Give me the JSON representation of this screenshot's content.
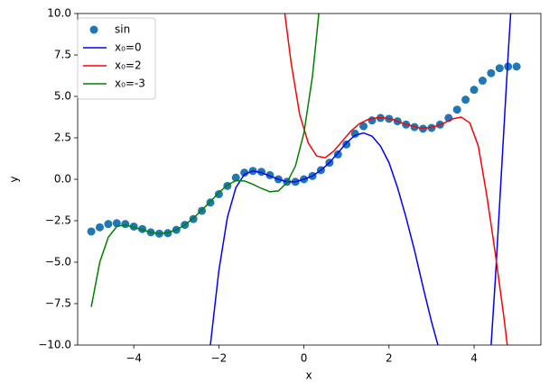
{
  "chart_data": {
    "type": "scatter",
    "xlabel": "x",
    "ylabel": "y",
    "xlim": [
      -5.32,
      5.57
    ],
    "ylim": [
      -10,
      10
    ],
    "xticks": [
      {
        "value": -4,
        "label": "−4"
      },
      {
        "value": -2,
        "label": "−2"
      },
      0,
      2,
      4
    ],
    "yticks": [
      {
        "value": -10,
        "label": "−10.0"
      },
      {
        "value": -7.5,
        "label": "−7.5"
      },
      {
        "value": -5,
        "label": "−5.0"
      },
      {
        "value": -2.5,
        "label": "−2.5"
      },
      {
        "value": 0,
        "label": "0.0"
      },
      2.5,
      {
        "value": 5,
        "label": "5.0"
      },
      7.5,
      {
        "value": 10,
        "label": "10.0"
      }
    ],
    "legend": "upper left",
    "series": [
      {
        "name": "sin",
        "type": "scatter",
        "color": "#1f77b4",
        "x": [
          -5,
          -4.8,
          -4.6,
          -4.4,
          -4.2,
          -4,
          -3.8,
          -3.6,
          -3.4,
          -3.2,
          -3,
          -2.8,
          -2.6,
          -2.4,
          -2.2,
          -2,
          -1.8,
          -1.6,
          -1.4,
          -1.2,
          -1,
          -0.8,
          -0.6,
          -0.4,
          -0.2,
          0,
          0.2,
          0.4,
          0.6,
          0.8,
          1,
          1.2,
          1.4,
          1.6,
          1.8,
          2,
          2.2,
          2.4,
          2.6,
          2.8,
          3,
          3.2,
          3.4,
          3.6,
          3.8,
          4,
          4.2,
          4.4,
          4.6,
          4.8,
          5
        ],
        "values": [
          -3.15,
          -2.9,
          -2.7,
          -2.65,
          -2.7,
          -2.85,
          -3,
          -3.2,
          -3.28,
          -3.25,
          -3.05,
          -2.75,
          -2.4,
          -1.9,
          -1.4,
          -0.9,
          -0.4,
          0.1,
          0.4,
          0.5,
          0.45,
          0.25,
          0,
          -0.15,
          -0.15,
          0,
          0.2,
          0.55,
          1,
          1.5,
          2.1,
          2.75,
          3.2,
          3.55,
          3.7,
          3.65,
          3.5,
          3.3,
          3.15,
          3.05,
          3.1,
          3.3,
          3.7,
          4.2,
          4.8,
          5.4,
          5.95,
          6.4,
          6.7,
          6.8,
          6.8
        ]
      },
      {
        "name": "x₀=0",
        "type": "line",
        "color": "#0000ff",
        "x": [
          -2.2,
          -2,
          -1.8,
          -1.6,
          -1.4,
          -1.2,
          -1,
          -0.8,
          -0.6,
          -0.4,
          -0.2,
          0,
          0.2,
          0.4,
          0.6,
          0.8,
          1,
          1.2,
          1.4,
          1.6,
          1.8,
          2,
          2.2,
          2.4,
          2.6,
          2.8,
          3,
          3.15,
          3.8,
          4.4,
          4.5,
          4.6,
          4.7,
          4.8,
          4.86
        ],
        "values": [
          -10,
          -5.5,
          -2.3,
          -0.5,
          0.3,
          0.5,
          0.4,
          0.2,
          0,
          -0.15,
          -0.15,
          0,
          0.2,
          0.55,
          1,
          1.6,
          2.2,
          2.65,
          2.8,
          2.6,
          2,
          1,
          -0.5,
          -2.3,
          -4.3,
          -6.5,
          -8.6,
          -10,
          null,
          -10,
          -6,
          -1.5,
          3,
          7.5,
          10
        ]
      },
      {
        "name": "x₀=2",
        "type": "line",
        "color": "#ff0000",
        "x": [
          -0.45,
          -0.3,
          -0.1,
          0.1,
          0.3,
          0.5,
          0.7,
          0.9,
          1.1,
          1.3,
          1.5,
          1.7,
          1.9,
          2.1,
          2.3,
          2.5,
          2.7,
          2.9,
          3.1,
          3.3,
          3.5,
          3.7,
          3.9,
          4.1,
          4.3,
          4.5,
          4.7,
          4.78
        ],
        "values": [
          10,
          7,
          3.9,
          2.2,
          1.4,
          1.3,
          1.7,
          2.3,
          2.9,
          3.35,
          3.6,
          3.7,
          3.7,
          3.6,
          3.4,
          3.25,
          3.1,
          3.1,
          3.2,
          3.4,
          3.65,
          3.75,
          3.4,
          2,
          -1,
          -4.5,
          -8.3,
          -10
        ]
      },
      {
        "name": "x₀=-3",
        "type": "line",
        "color": "#008000",
        "x": [
          -5,
          -4.8,
          -4.6,
          -4.4,
          -4.2,
          -4,
          -3.8,
          -3.6,
          -3.4,
          -3.2,
          -3,
          -2.8,
          -2.6,
          -2.4,
          -2.2,
          -2,
          -1.8,
          -1.6,
          -1.4,
          -1.2,
          -1,
          -0.8,
          -0.6,
          -0.4,
          -0.2,
          0,
          0.2,
          0.35
        ],
        "values": [
          -7.7,
          -5,
          -3.5,
          -2.85,
          -2.75,
          -2.9,
          -3.05,
          -3.2,
          -3.28,
          -3.22,
          -3.05,
          -2.75,
          -2.35,
          -1.85,
          -1.35,
          -0.8,
          -0.35,
          -0.08,
          -0.1,
          -0.3,
          -0.55,
          -0.75,
          -0.7,
          -0.2,
          0.8,
          2.8,
          6.2,
          10
        ]
      }
    ]
  }
}
